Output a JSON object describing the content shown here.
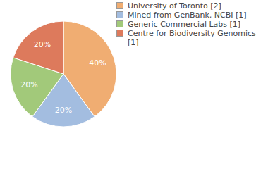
{
  "chart_data": {
    "type": "pie",
    "categories": [
      "University of Toronto [2]",
      "Mined from GenBank, NCBI [1]",
      "Generic Commercial Labs [1]",
      "Centre for Biodiversity Genomics [1]"
    ],
    "values": [
      40,
      20,
      20,
      20
    ],
    "value_labels": [
      "40%",
      "20%",
      "20%",
      "20%"
    ],
    "colors": [
      "#f0ad72",
      "#a3bde0",
      "#a2c97a",
      "#dd7a5c"
    ],
    "data_labels": true,
    "legend": "top-right"
  }
}
